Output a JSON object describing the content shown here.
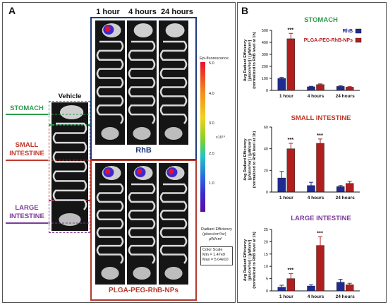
{
  "panel_a": {
    "letter": "A",
    "time_labels": [
      "1 hour",
      "4 hours",
      "24 hours"
    ],
    "vehicle_label": "Vehicle",
    "rhb_caption": "RhB",
    "plga_caption": "PLGA-PEG-RhB-NPs",
    "organ_labels": {
      "stomach": "STOMACH",
      "small_1": "SMALL",
      "small_2": "INTESTINE",
      "large_1": "LARGE",
      "large_2": "INTESTINE"
    },
    "colorbar": {
      "title": "Epi-fluorescence",
      "ticks": [
        "5.0",
        "4.0",
        "3.0",
        "2.0",
        "1.0"
      ],
      "exponent": "x10¹⁰",
      "unit_label_1": "Radiant Efficiency",
      "unit_label_2": "(p/sec/cm²/sr)",
      "unit_label_3": "μW/cm²",
      "scale_label": "Color Scale",
      "scale_min": "Min = 1.47e9",
      "scale_max": "Max = 5.04e10"
    },
    "colors": {
      "stomach": "#2e9e4f",
      "small": "#c0392b",
      "large": "#7d3c98",
      "rhb_box": "#1f3a7a",
      "plga_box": "#b03a2e"
    }
  },
  "panel_b": {
    "letter": "B",
    "legend": [
      "RhB",
      "PLGA-PEG-RhB-NPs"
    ],
    "series_colors": [
      "#1f2b8f",
      "#b01e1e"
    ],
    "ylabel_1": "Avg Radiant Efficiency",
    "ylabel_2": "[p/s/cm²/sr] / [μW/cm²]",
    "ylabel_3": "(normalized to RhB level at 1h)"
  },
  "chart_data": [
    {
      "type": "bar",
      "title": "STOMACH",
      "title_color": "#2e9e4f",
      "categories": [
        "1 hour",
        "4 hours",
        "24 hours"
      ],
      "ylim": [
        0,
        500
      ],
      "yticks": [
        "0",
        "100",
        "200",
        "300",
        "400",
        "500"
      ],
      "significance": [
        "***",
        "",
        ""
      ],
      "series": [
        {
          "name": "RhB",
          "values": [
            100,
            30,
            33
          ],
          "errors": [
            8,
            4,
            6
          ]
        },
        {
          "name": "PLGA-PEG-RhB-NPs",
          "values": [
            430,
            48,
            27
          ],
          "errors": [
            45,
            6,
            4
          ]
        }
      ]
    },
    {
      "type": "bar",
      "title": "SMALL INTESTINE",
      "title_color": "#c0392b",
      "categories": [
        "1 hour",
        "4 hours",
        "24 hours"
      ],
      "ylim": [
        0,
        60
      ],
      "yticks": [
        "0",
        "20",
        "40",
        "60"
      ],
      "significance": [
        "***",
        "***",
        ""
      ],
      "series": [
        {
          "name": "RhB",
          "values": [
            13,
            6,
            5
          ],
          "errors": [
            6,
            3,
            1
          ]
        },
        {
          "name": "PLGA-PEG-RhB-NPs",
          "values": [
            40,
            45,
            8
          ],
          "errors": [
            5,
            4,
            2
          ]
        }
      ]
    },
    {
      "type": "bar",
      "title": "LARGE INTESTINE",
      "title_color": "#7d3c98",
      "categories": [
        "1 hour",
        "4 hours",
        "24 hours"
      ],
      "ylim": [
        0,
        25
      ],
      "yticks": [
        "0",
        "5",
        "10",
        "15",
        "20",
        "25"
      ],
      "significance": [
        "***",
        "***",
        ""
      ],
      "series": [
        {
          "name": "RhB",
          "values": [
            1.5,
            2,
            3.5
          ],
          "errors": [
            0.8,
            0.5,
            1.2
          ]
        },
        {
          "name": "PLGA-PEG-RhB-NPs",
          "values": [
            5,
            18.5,
            2.5
          ],
          "errors": [
            2,
            3.5,
            0.6
          ]
        }
      ]
    }
  ]
}
